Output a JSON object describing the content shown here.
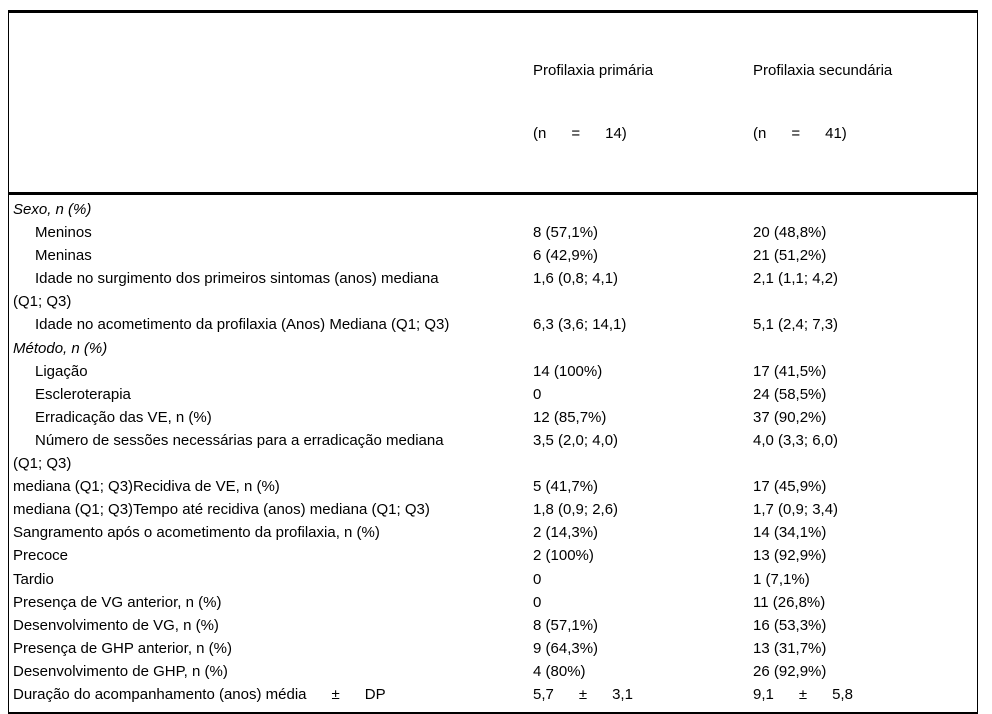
{
  "colors": {
    "text": "#000000",
    "border": "#000000",
    "background": "#ffffff"
  },
  "table": {
    "columns": [
      {
        "title": "Profilaxia primária",
        "n": "(n      =      14)"
      },
      {
        "title": "Profilaxia secundária",
        "n": "(n      =      41)"
      }
    ],
    "rows": [
      {
        "label": "Sexo, n (%)",
        "v1": "",
        "v2": ""
      },
      {
        "label": "Meninos",
        "v1": "8 (57,1%)",
        "v2": "20 (48,8%)"
      },
      {
        "label": "Meninas",
        "v1": "6 (42,9%)",
        "v2": "21 (51,2%)"
      },
      {
        "label": "Idade no surgimento dos primeiros sintomas (anos) mediana\n(Q1; Q3)",
        "v1": "1,6 (0,8; 4,1)",
        "v2": "2,1 (1,1; 4,2)"
      },
      {
        "label": "Idade no acometimento da profilaxia (Anos) Mediana (Q1; Q3)",
        "v1": "6,3 (3,6; 14,1)",
        "v2": "5,1 (2,4; 7,3)"
      },
      {
        "label": "Método, n (%)",
        "v1": "",
        "v2": ""
      },
      {
        "label": "Ligação",
        "v1": "14 (100%)",
        "v2": "17 (41,5%)"
      },
      {
        "label": "Escleroterapia",
        "v1": "0",
        "v2": "24 (58,5%)"
      },
      {
        "label": "Erradicação das VE, n (%)",
        "v1": "12 (85,7%)",
        "v2": "37 (90,2%)"
      },
      {
        "label": "Número de sessões necessárias para a erradicação mediana\n(Q1; Q3)",
        "v1": "3,5 (2,0; 4,0)",
        "v2": "4,0 (3,3; 6,0)"
      },
      {
        "label": "mediana (Q1; Q3)Recidiva de VE, n (%)",
        "v1": "5 (41,7%)",
        "v2": "17 (45,9%)"
      },
      {
        "label": "mediana (Q1; Q3)Tempo até recidiva (anos) mediana (Q1; Q3)",
        "v1": "1,8 (0,9; 2,6)",
        "v2": "1,7 (0,9; 3,4)"
      },
      {
        "label": "Sangramento após o acometimento da profilaxia, n (%)",
        "v1": "2 (14,3%)",
        "v2": "14 (34,1%)"
      },
      {
        "label": "Precoce",
        "v1": "2 (100%)",
        "v2": "13 (92,9%)"
      },
      {
        "label": "Tardio",
        "v1": "0",
        "v2": "1 (7,1%)"
      },
      {
        "label": "Presença de VG anterior, n (%)",
        "v1": "0",
        "v2": "11 (26,8%)"
      },
      {
        "label": "Desenvolvimento de VG, n (%)",
        "v1": "8 (57,1%)",
        "v2": "16 (53,3%)"
      },
      {
        "label": "Presença de GHP anterior, n (%)",
        "v1": "9 (64,3%)",
        "v2": "13 (31,7%)"
      },
      {
        "label": "Desenvolvimento de GHP, n (%)",
        "v1": "4 (80%)",
        "v2": "26 (92,9%)"
      },
      {
        "label": "Duração do acompanhamento (anos) média      ±      DP",
        "v1": "5,7      ±      3,1",
        "v2": "9,1      ±      5,8"
      }
    ]
  }
}
